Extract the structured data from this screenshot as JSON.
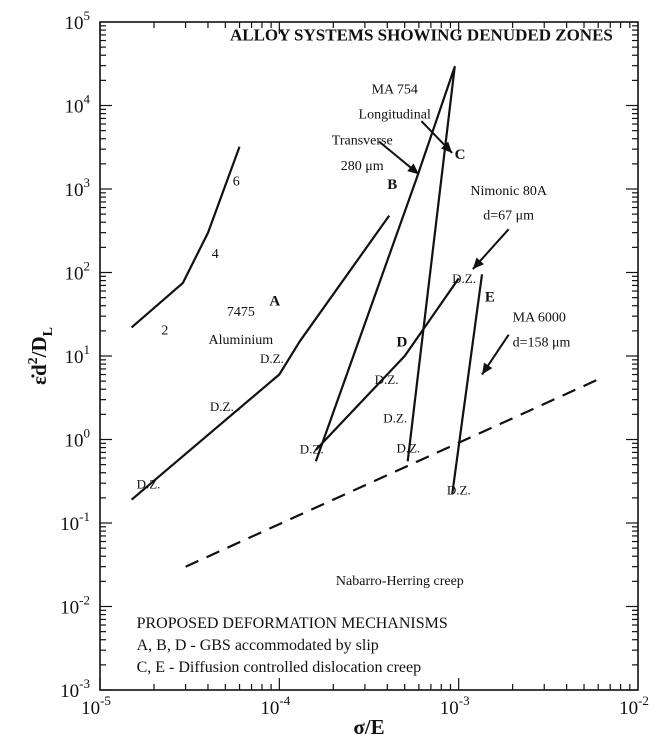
{
  "chart_data": {
    "type": "line",
    "title": "ALLOY SYSTEMS SHOWING DENUDED ZONES",
    "xlabel": "σ/E",
    "ylabel_main": "ε̇d",
    "ylabel_sup": "2",
    "ylabel_tail": "/D",
    "ylabel_sub": "L",
    "x_scale": "log",
    "y_scale": "log",
    "xlim": [
      1e-05,
      0.01
    ],
    "ylim": [
      0.001,
      100000.0
    ],
    "x_ticks": [
      {
        "value": 1e-05,
        "base": "10",
        "exp": "-5"
      },
      {
        "value": 0.0001,
        "base": "10",
        "exp": "-4"
      },
      {
        "value": 0.001,
        "base": "10",
        "exp": "-3"
      },
      {
        "value": 0.01,
        "base": "10",
        "exp": "-2"
      }
    ],
    "y_ticks": [
      {
        "value": 0.001,
        "base": "10",
        "exp": "-3"
      },
      {
        "value": 0.01,
        "base": "10",
        "exp": "-2"
      },
      {
        "value": 0.1,
        "base": "10",
        "exp": "-1"
      },
      {
        "value": 1.0,
        "base": "10",
        "exp": "0"
      },
      {
        "value": 10.0,
        "base": "10",
        "exp": "1"
      },
      {
        "value": 100.0,
        "base": "10",
        "exp": "2"
      },
      {
        "value": 1000.0,
        "base": "10",
        "exp": "3"
      },
      {
        "value": 10000.0,
        "base": "10",
        "exp": "4"
      },
      {
        "value": 100000.0,
        "base": "10",
        "exp": "5"
      }
    ],
    "series": [
      {
        "key": "curve-2-4-6",
        "dashed": false,
        "points": [
          [
            1.5e-05,
            22
          ],
          [
            2.9e-05,
            75
          ],
          [
            4e-05,
            300
          ],
          [
            6e-05,
            3200
          ]
        ]
      },
      {
        "key": "curve-a",
        "dashed": false,
        "points": [
          [
            1.5e-05,
            0.19
          ],
          [
            0.0001,
            6.0
          ],
          [
            0.00013,
            15
          ],
          [
            0.00041,
            480
          ]
        ]
      },
      {
        "key": "curve-b-c",
        "dashed": false,
        "points": [
          [
            0.00016,
            0.55
          ],
          [
            0.00058,
            1300
          ],
          [
            0.00095,
            29000
          ],
          [
            0.00052,
            0.55
          ]
        ]
      },
      {
        "key": "curve-d",
        "dashed": false,
        "points": [
          [
            0.00016,
            0.75
          ],
          [
            0.0005,
            10
          ],
          [
            0.001,
            85
          ]
        ]
      },
      {
        "key": "curve-e",
        "dashed": false,
        "points": [
          [
            0.00092,
            0.22
          ],
          [
            0.00135,
            95
          ]
        ]
      },
      {
        "key": "nabarro-herring",
        "dashed": true,
        "points": [
          [
            3e-05,
            0.03
          ],
          [
            0.0063,
            5.5
          ]
        ]
      }
    ],
    "labels": [
      {
        "key": "lbl-2",
        "text": "2",
        "x": 2.2e-05,
        "y": 18,
        "style": "ann"
      },
      {
        "key": "lbl-4",
        "text": "4",
        "x": 4.2e-05,
        "y": 150,
        "style": "ann"
      },
      {
        "key": "lbl-6",
        "text": "6",
        "x": 5.5e-05,
        "y": 1100,
        "style": "ann"
      },
      {
        "key": "lbl-a",
        "text": "A",
        "x": 8.8e-05,
        "y": 40,
        "style": "ann-bold"
      },
      {
        "key": "lbl-b",
        "text": "B",
        "x": 0.0004,
        "y": 1000,
        "style": "ann-bold"
      },
      {
        "key": "lbl-c",
        "text": "C",
        "x": 0.00095,
        "y": 2300,
        "style": "ann-bold"
      },
      {
        "key": "lbl-d",
        "text": "D",
        "x": 0.00045,
        "y": 13,
        "style": "ann-bold"
      },
      {
        "key": "lbl-e",
        "text": "E",
        "x": 0.0014,
        "y": 45,
        "style": "ann-bold"
      },
      {
        "key": "lbl-7475",
        "text": "7475",
        "x": 6.1e-05,
        "y": 30,
        "style": "ann"
      },
      {
        "key": "lbl-aluminium",
        "text": "Aluminium",
        "x": 6.1e-05,
        "y": 14,
        "style": "ann"
      },
      {
        "key": "lbl-ma754",
        "text": "MA 754",
        "x": 0.00044,
        "y": 14000,
        "style": "ann"
      },
      {
        "key": "lbl-longitudinal",
        "text": "Longitudinal",
        "x": 0.00044,
        "y": 7000,
        "style": "ann"
      },
      {
        "key": "lbl-transverse",
        "text": "Transverse",
        "x": 0.00029,
        "y": 3400,
        "style": "ann"
      },
      {
        "key": "lbl-280",
        "text": "280 μm",
        "x": 0.00029,
        "y": 1700,
        "style": "ann"
      },
      {
        "key": "lbl-nimonic",
        "text": "Nimonic 80A",
        "x": 0.0019,
        "y": 850,
        "style": "ann"
      },
      {
        "key": "lbl-d67",
        "text": "d=67 μm",
        "x": 0.0019,
        "y": 430,
        "style": "ann"
      },
      {
        "key": "lbl-ma6000",
        "text": "MA 6000",
        "x": 0.002,
        "y": 26,
        "style": "ann"
      },
      {
        "key": "lbl-d158",
        "text": "d=158 μm",
        "x": 0.002,
        "y": 13,
        "style": "ann"
      },
      {
        "key": "dz-1",
        "text": "D.Z.",
        "x": 1.6e-05,
        "y": 0.26,
        "style": "dz"
      },
      {
        "key": "dz-2",
        "text": "D.Z.",
        "x": 4.1e-05,
        "y": 2.2,
        "style": "dz"
      },
      {
        "key": "dz-3",
        "text": "D.Z.",
        "x": 7.8e-05,
        "y": 8.2,
        "style": "dz"
      },
      {
        "key": "dz-4",
        "text": "D.Z.",
        "x": 0.00013,
        "y": 0.68,
        "style": "dz"
      },
      {
        "key": "dz-5",
        "text": "D.Z.",
        "x": 0.00034,
        "y": 4.6,
        "style": "dz"
      },
      {
        "key": "dz-6",
        "text": "D.Z.",
        "x": 0.00038,
        "y": 1.6,
        "style": "dz"
      },
      {
        "key": "dz-7",
        "text": "D.Z.",
        "x": 0.00045,
        "y": 0.7,
        "style": "dz"
      },
      {
        "key": "dz-8",
        "text": "D.Z.",
        "x": 0.00092,
        "y": 75,
        "style": "dz"
      },
      {
        "key": "dz-9",
        "text": "D.Z.",
        "x": 0.00086,
        "y": 0.22,
        "style": "dz"
      },
      {
        "key": "lbl-nh",
        "text": "Nabarro-Herring creep",
        "x": 0.00047,
        "y": 0.018,
        "style": "ann"
      }
    ],
    "arrows": [
      {
        "key": "arrow-ma754-longitudinal",
        "from": [
          0.00062,
          6500
        ],
        "to": [
          0.00092,
          2700
        ]
      },
      {
        "key": "arrow-ma754-transverse",
        "from": [
          0.00036,
          3700
        ],
        "to": [
          0.0006,
          1500
        ]
      },
      {
        "key": "arrow-nimonic",
        "from": [
          0.0019,
          330
        ],
        "to": [
          0.0012,
          110
        ]
      },
      {
        "key": "arrow-ma6000",
        "from": [
          0.0019,
          18
        ],
        "to": [
          0.00135,
          6
        ]
      }
    ],
    "legend_lines": [
      "PROPOSED DEFORMATION MECHANISMS",
      "A, B, D - GBS accommodated by slip",
      "C, E      - Diffusion controlled dislocation creep"
    ],
    "legend_anchor": {
      "x": 1.6e-05,
      "y": 0.0055
    },
    "title_anchor": {
      "x": 0.00062,
      "y": 60000
    }
  }
}
